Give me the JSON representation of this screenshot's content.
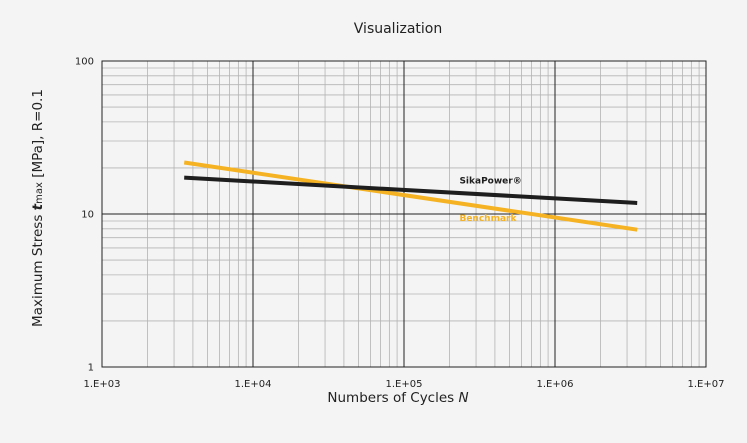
{
  "chart_data": {
    "type": "line",
    "title": "Visualization",
    "xlabel": {
      "prefix": "Numbers of Cycles ",
      "italic": "N"
    },
    "ylabel": {
      "prefix": "Maximum Stress ",
      "symbol": "t",
      "sub": "max",
      "suffix": " [MPa], R=0.1"
    },
    "x_scale": "log",
    "y_scale": "log",
    "xlim": [
      1000,
      10000000
    ],
    "ylim": [
      1,
      100
    ],
    "x_ticks": [
      {
        "value": 1000,
        "label": "1.E+03"
      },
      {
        "value": 10000,
        "label": "1.E+04"
      },
      {
        "value": 100000,
        "label": "1.E+05"
      },
      {
        "value": 1000000,
        "label": "1.E+06"
      },
      {
        "value": 10000000,
        "label": "1.E+07"
      }
    ],
    "y_ticks": [
      {
        "value": 1,
        "label": "1"
      },
      {
        "value": 10,
        "label": "10"
      },
      {
        "value": 100,
        "label": "100"
      }
    ],
    "grid": true,
    "series": [
      {
        "name": "SikaPower®",
        "color": "#1e1e1e",
        "x": [
          3500,
          3500000
        ],
        "y": [
          17.3,
          11.8
        ]
      },
      {
        "name": "Benchmark",
        "color": "#f5b324",
        "x": [
          3500,
          3500000
        ],
        "y": [
          21.7,
          7.9
        ]
      }
    ]
  }
}
